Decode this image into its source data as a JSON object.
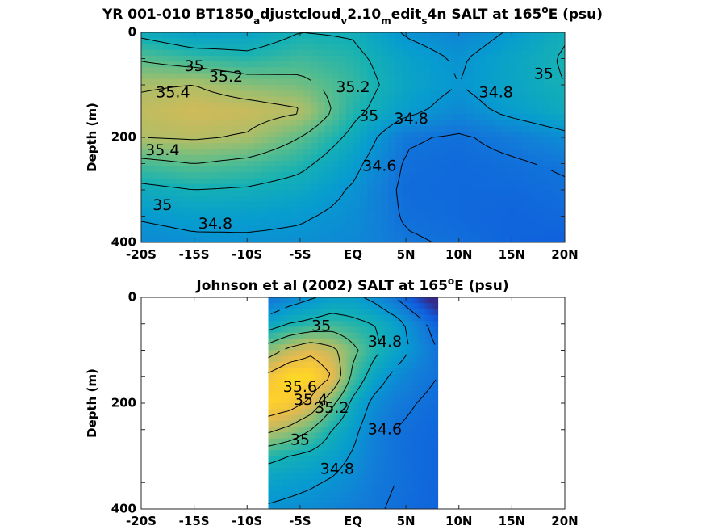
{
  "chart_data": [
    {
      "type": "contour",
      "title": {
        "prefix": "YR 001-010 BT1850",
        "sub1": "a",
        "mid1": "djustcloud",
        "sub2": "v",
        "mid2": "2.10",
        "sub3": "m",
        "mid3": "edit",
        "sub4": "s",
        "mid4": "4n SALT at 165",
        "deg": "o",
        "suffix": "E (psu)"
      },
      "xlabel": "",
      "ylabel": "Depth (m)",
      "x_ticks": [
        "-20S",
        "-15S",
        "-10S",
        "-5S",
        "EQ",
        "5N",
        "10N",
        "15N",
        "20N"
      ],
      "y_ticks": [
        "0",
        "200",
        "400"
      ],
      "xlim": [
        -20,
        20
      ],
      "ylim": [
        0,
        400
      ],
      "y_reversed": true,
      "data_extent_lat": [
        -20,
        20
      ],
      "colormap": "parula",
      "salinity_grid": {
        "lat": [
          -20,
          -15,
          -10,
          -5,
          0,
          5,
          10,
          15,
          20
        ],
        "depth": [
          0,
          50,
          100,
          150,
          200,
          250,
          300,
          350,
          400
        ],
        "values": [
          [
            34.95,
            34.85,
            34.88,
            35.0,
            34.98,
            34.78,
            34.7,
            34.82,
            34.98
          ],
          [
            35.18,
            35.1,
            35.05,
            35.12,
            35.05,
            34.88,
            34.78,
            34.9,
            35.02
          ],
          [
            35.38,
            35.4,
            35.3,
            35.25,
            35.1,
            34.9,
            34.8,
            34.9,
            35.0
          ],
          [
            35.45,
            35.5,
            35.48,
            35.42,
            35.05,
            34.85,
            34.72,
            34.85,
            34.95
          ],
          [
            35.4,
            35.42,
            35.38,
            35.2,
            34.95,
            34.62,
            34.58,
            34.65,
            34.75
          ],
          [
            35.15,
            35.2,
            35.15,
            35.05,
            34.85,
            34.58,
            34.55,
            34.58,
            34.62
          ],
          [
            34.95,
            35.0,
            34.98,
            34.92,
            34.78,
            34.56,
            34.55,
            34.55,
            34.58
          ],
          [
            34.82,
            34.86,
            34.85,
            34.82,
            34.75,
            34.58,
            34.55,
            34.52,
            34.55
          ],
          [
            34.72,
            34.76,
            34.77,
            34.76,
            34.72,
            34.62,
            34.58,
            34.52,
            34.5
          ]
        ]
      },
      "contour_labels": [
        {
          "text": "35",
          "lat": -15,
          "depth": 65
        },
        {
          "text": "35.2",
          "lat": -12,
          "depth": 85
        },
        {
          "text": "35.4",
          "lat": -17,
          "depth": 115
        },
        {
          "text": "35.2",
          "lat": 0,
          "depth": 105
        },
        {
          "text": "35",
          "lat": 1.5,
          "depth": 160
        },
        {
          "text": "34.8",
          "lat": 5.5,
          "depth": 165
        },
        {
          "text": "34.8",
          "lat": 13.5,
          "depth": 115
        },
        {
          "text": "35",
          "lat": 18,
          "depth": 80
        },
        {
          "text": "35.4",
          "lat": -18,
          "depth": 225
        },
        {
          "text": "34.6",
          "lat": 2.5,
          "depth": 255
        },
        {
          "text": "35",
          "lat": -18,
          "depth": 330
        },
        {
          "text": "34.8",
          "lat": -13,
          "depth": 365
        }
      ]
    },
    {
      "type": "contour",
      "title": {
        "prefix": "Johnson et al (2002) SALT at 165",
        "deg": "o",
        "suffix": "E (psu)"
      },
      "xlabel": "",
      "ylabel": "Depth (m)",
      "x_ticks": [
        "-20S",
        "-15S",
        "-10S",
        "-5S",
        "EQ",
        "5N",
        "10N",
        "15N",
        "20N"
      ],
      "y_ticks": [
        "0",
        "200",
        "400"
      ],
      "xlim": [
        -20,
        20
      ],
      "ylim": [
        0,
        400
      ],
      "y_reversed": true,
      "data_extent_lat": [
        -8,
        8
      ],
      "colormap": "parula",
      "salinity_grid": {
        "lat": [
          -8,
          -6,
          -4,
          -2,
          0,
          2,
          4,
          6,
          8
        ],
        "depth": [
          0,
          50,
          100,
          150,
          200,
          250,
          300,
          350,
          400
        ],
        "values": [
          [
            34.6,
            34.7,
            34.78,
            34.85,
            34.85,
            34.75,
            34.6,
            34.4,
            34.2
          ],
          [
            34.9,
            35.0,
            35.05,
            35.1,
            35.05,
            35.0,
            34.88,
            34.7,
            34.5
          ],
          [
            35.3,
            35.45,
            35.55,
            35.45,
            35.25,
            35.05,
            34.9,
            34.75,
            34.6
          ],
          [
            35.65,
            35.78,
            35.78,
            35.6,
            35.15,
            34.9,
            34.75,
            34.65,
            34.6
          ],
          [
            35.75,
            35.7,
            35.55,
            35.25,
            34.95,
            34.75,
            34.65,
            34.6,
            34.56
          ],
          [
            35.45,
            35.35,
            35.2,
            35.0,
            34.85,
            34.68,
            34.6,
            34.56,
            34.54
          ],
          [
            35.05,
            35.0,
            34.95,
            34.88,
            34.78,
            34.66,
            34.6,
            34.56,
            34.53
          ],
          [
            34.88,
            34.85,
            34.82,
            34.78,
            34.72,
            34.64,
            34.6,
            34.56,
            34.53
          ],
          [
            34.78,
            34.76,
            34.74,
            34.7,
            34.66,
            34.62,
            34.58,
            34.55,
            34.52
          ]
        ]
      },
      "contour_labels": [
        {
          "text": "35",
          "lat": -3,
          "depth": 55
        },
        {
          "text": "34.8",
          "lat": 3,
          "depth": 85
        },
        {
          "text": "35.6",
          "lat": -5,
          "depth": 170
        },
        {
          "text": "35.4",
          "lat": -4,
          "depth": 195
        },
        {
          "text": "35.2",
          "lat": -2,
          "depth": 210
        },
        {
          "text": "34.6",
          "lat": 3,
          "depth": 250
        },
        {
          "text": "35",
          "lat": -5,
          "depth": 270
        },
        {
          "text": "34.8",
          "lat": -1.5,
          "depth": 325
        }
      ]
    }
  ]
}
